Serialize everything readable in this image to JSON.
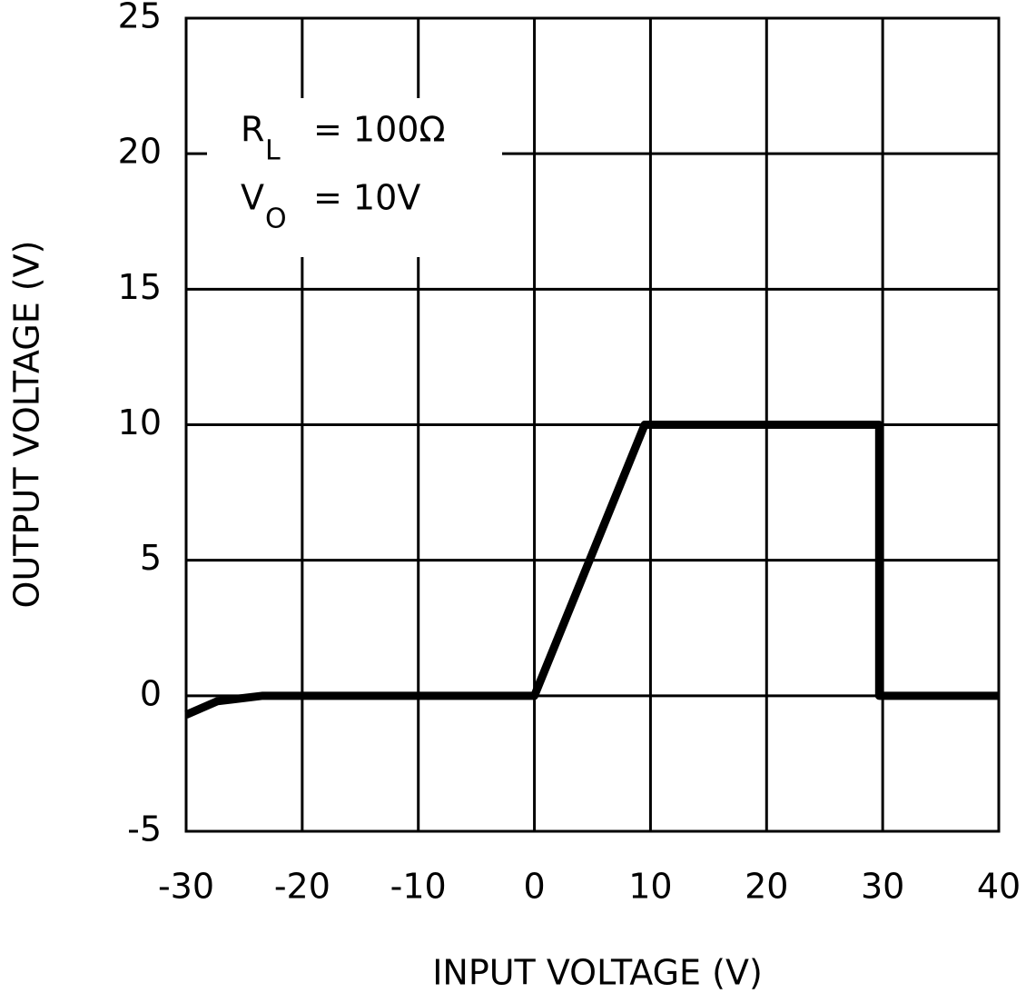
{
  "chart_data": {
    "type": "line",
    "xlabel": "INPUT VOLTAGE (V)",
    "ylabel": "OUTPUT VOLTAGE (V)",
    "annotations": [
      {
        "symbol": "R",
        "subscript": "L",
        "text": "=  100Ω"
      },
      {
        "symbol": "V",
        "subscript": "O",
        "text": "=  10V"
      }
    ],
    "x": [
      -30,
      -27.3,
      -23.4,
      0,
      9.5,
      29.7,
      29.7,
      40
    ],
    "series": [
      {
        "color": "#000000",
        "values": [
          -0.7,
          -0.2,
          0,
          0,
          10,
          10,
          0,
          0
        ]
      }
    ],
    "xlim": [
      -30,
      40
    ],
    "xticks": [
      -30,
      -20,
      -10,
      0,
      10,
      20,
      30,
      40
    ],
    "ylim": [
      -5,
      25
    ],
    "yticks": [
      -5,
      0,
      5,
      10,
      15,
      20,
      25
    ],
    "grid": true
  }
}
